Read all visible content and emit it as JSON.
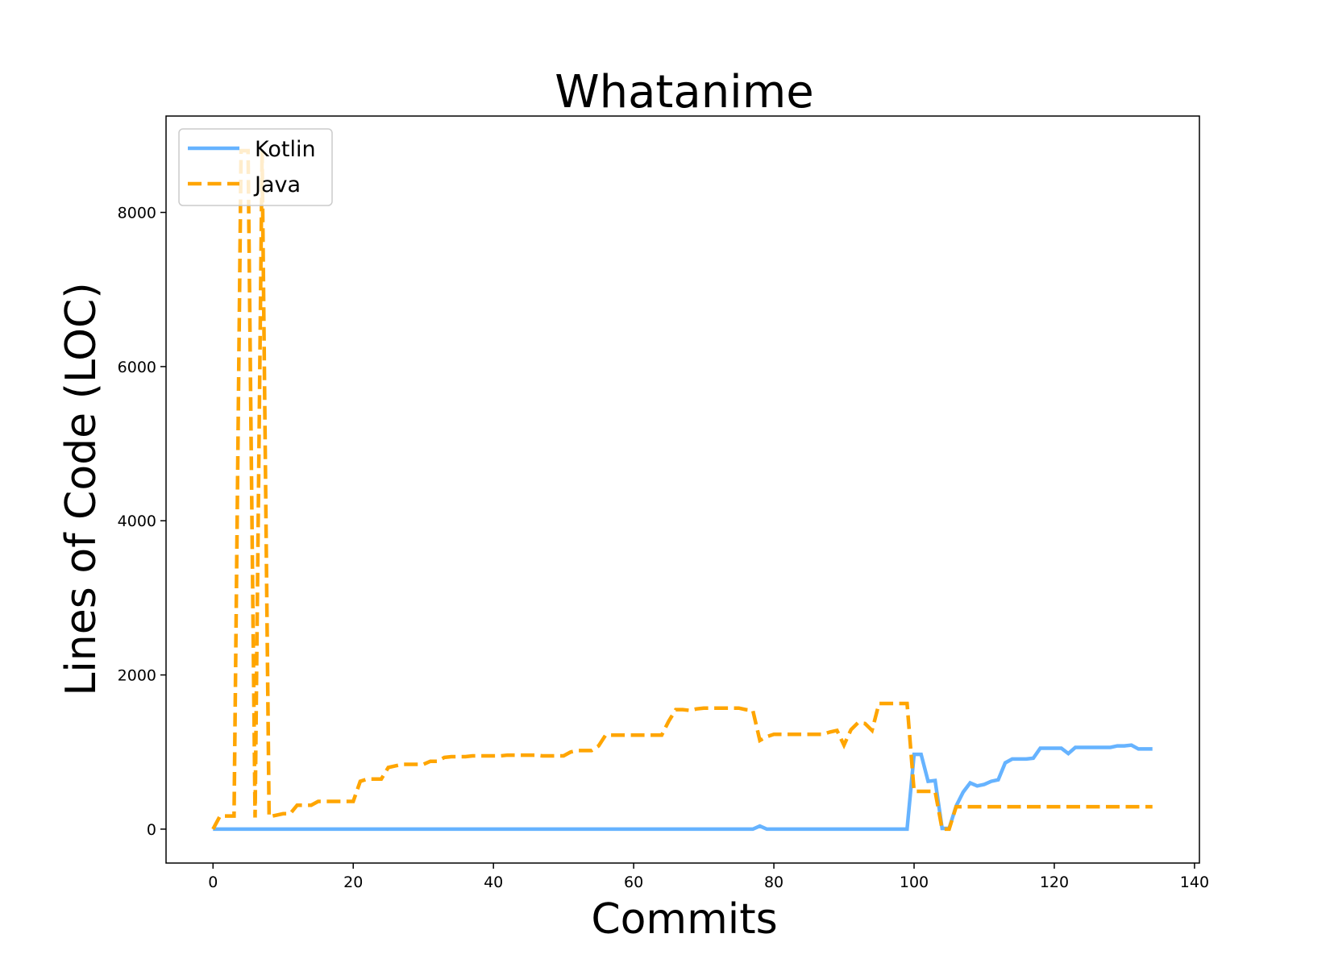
{
  "chart_data": {
    "type": "line",
    "title": "Whatanime",
    "xlabel": "Commits",
    "ylabel": "Lines of Code (LOC)",
    "xlim": [
      -6.7,
      140.7
    ],
    "ylim": [
      -440,
      9250
    ],
    "xticks": [
      0,
      20,
      40,
      60,
      80,
      100,
      120,
      140
    ],
    "yticks": [
      0,
      2000,
      4000,
      6000,
      8000
    ],
    "legend_position": "top-left",
    "grid": false,
    "series": [
      {
        "name": "Kotlin",
        "color": "#66b3ff",
        "style": "solid",
        "points": [
          [
            0,
            0
          ],
          [
            77,
            0
          ],
          [
            78,
            40
          ],
          [
            79,
            0
          ],
          [
            99,
            0
          ],
          [
            100,
            970
          ],
          [
            101,
            970
          ],
          [
            102,
            620
          ],
          [
            103,
            630
          ],
          [
            104,
            10
          ],
          [
            105,
            10
          ],
          [
            106,
            300
          ],
          [
            107,
            480
          ],
          [
            108,
            600
          ],
          [
            109,
            560
          ],
          [
            110,
            580
          ],
          [
            111,
            620
          ],
          [
            112,
            640
          ],
          [
            113,
            860
          ],
          [
            114,
            910
          ],
          [
            115,
            910
          ],
          [
            116,
            910
          ],
          [
            117,
            920
          ],
          [
            118,
            1050
          ],
          [
            119,
            1050
          ],
          [
            120,
            1050
          ],
          [
            121,
            1050
          ],
          [
            122,
            980
          ],
          [
            123,
            1060
          ],
          [
            124,
            1060
          ],
          [
            125,
            1060
          ],
          [
            126,
            1060
          ],
          [
            127,
            1060
          ],
          [
            128,
            1060
          ],
          [
            129,
            1080
          ],
          [
            130,
            1080
          ],
          [
            131,
            1090
          ],
          [
            132,
            1040
          ],
          [
            133,
            1040
          ],
          [
            134,
            1040
          ]
        ]
      },
      {
        "name": "Java",
        "color": "#ffa500",
        "style": "dashed",
        "points": [
          [
            0,
            0
          ],
          [
            1,
            170
          ],
          [
            2,
            170
          ],
          [
            3,
            170
          ],
          [
            4,
            8800
          ],
          [
            5,
            8800
          ],
          [
            6,
            150
          ],
          [
            7,
            8800
          ],
          [
            8,
            160
          ],
          [
            9,
            180
          ],
          [
            10,
            200
          ],
          [
            11,
            200
          ],
          [
            12,
            310
          ],
          [
            13,
            310
          ],
          [
            14,
            310
          ],
          [
            15,
            360
          ],
          [
            16,
            360
          ],
          [
            17,
            360
          ],
          [
            18,
            360
          ],
          [
            19,
            360
          ],
          [
            20,
            360
          ],
          [
            21,
            620
          ],
          [
            22,
            650
          ],
          [
            23,
            650
          ],
          [
            24,
            650
          ],
          [
            25,
            800
          ],
          [
            26,
            820
          ],
          [
            27,
            840
          ],
          [
            28,
            840
          ],
          [
            29,
            840
          ],
          [
            30,
            840
          ],
          [
            31,
            880
          ],
          [
            32,
            880
          ],
          [
            33,
            930
          ],
          [
            34,
            940
          ],
          [
            35,
            940
          ],
          [
            36,
            940
          ],
          [
            37,
            950
          ],
          [
            38,
            950
          ],
          [
            39,
            950
          ],
          [
            40,
            950
          ],
          [
            41,
            950
          ],
          [
            42,
            960
          ],
          [
            43,
            960
          ],
          [
            44,
            960
          ],
          [
            45,
            960
          ],
          [
            46,
            960
          ],
          [
            47,
            950
          ],
          [
            48,
            950
          ],
          [
            49,
            950
          ],
          [
            50,
            950
          ],
          [
            51,
            1000
          ],
          [
            52,
            1020
          ],
          [
            53,
            1020
          ],
          [
            54,
            1020
          ],
          [
            55,
            1080
          ],
          [
            56,
            1220
          ],
          [
            57,
            1220
          ],
          [
            58,
            1220
          ],
          [
            59,
            1220
          ],
          [
            60,
            1220
          ],
          [
            61,
            1220
          ],
          [
            62,
            1220
          ],
          [
            63,
            1220
          ],
          [
            64,
            1220
          ],
          [
            65,
            1400
          ],
          [
            66,
            1550
          ],
          [
            67,
            1550
          ],
          [
            68,
            1540
          ],
          [
            69,
            1560
          ],
          [
            70,
            1570
          ],
          [
            71,
            1570
          ],
          [
            72,
            1570
          ],
          [
            73,
            1570
          ],
          [
            74,
            1570
          ],
          [
            75,
            1570
          ],
          [
            76,
            1550
          ],
          [
            77,
            1540
          ],
          [
            78,
            1150
          ],
          [
            79,
            1200
          ],
          [
            80,
            1230
          ],
          [
            81,
            1230
          ],
          [
            82,
            1230
          ],
          [
            83,
            1230
          ],
          [
            84,
            1230
          ],
          [
            85,
            1230
          ],
          [
            86,
            1230
          ],
          [
            87,
            1230
          ],
          [
            88,
            1260
          ],
          [
            89,
            1280
          ],
          [
            90,
            1090
          ],
          [
            91,
            1290
          ],
          [
            92,
            1380
          ],
          [
            93,
            1370
          ],
          [
            94,
            1280
          ],
          [
            95,
            1630
          ],
          [
            96,
            1630
          ],
          [
            97,
            1630
          ],
          [
            98,
            1630
          ],
          [
            99,
            1630
          ],
          [
            100,
            490
          ],
          [
            101,
            490
          ],
          [
            102,
            490
          ],
          [
            103,
            490
          ],
          [
            104,
            0
          ],
          [
            105,
            0
          ],
          [
            106,
            290
          ],
          [
            107,
            290
          ],
          [
            108,
            290
          ],
          [
            109,
            290
          ],
          [
            110,
            290
          ],
          [
            111,
            290
          ],
          [
            112,
            290
          ],
          [
            113,
            290
          ],
          [
            114,
            290
          ],
          [
            115,
            290
          ],
          [
            116,
            290
          ],
          [
            117,
            290
          ],
          [
            118,
            290
          ],
          [
            119,
            290
          ],
          [
            120,
            290
          ],
          [
            121,
            290
          ],
          [
            122,
            290
          ],
          [
            123,
            290
          ],
          [
            124,
            290
          ],
          [
            125,
            290
          ],
          [
            126,
            290
          ],
          [
            127,
            290
          ],
          [
            128,
            290
          ],
          [
            129,
            290
          ],
          [
            130,
            290
          ],
          [
            131,
            290
          ],
          [
            132,
            290
          ],
          [
            133,
            290
          ],
          [
            134,
            290
          ]
        ]
      }
    ]
  }
}
